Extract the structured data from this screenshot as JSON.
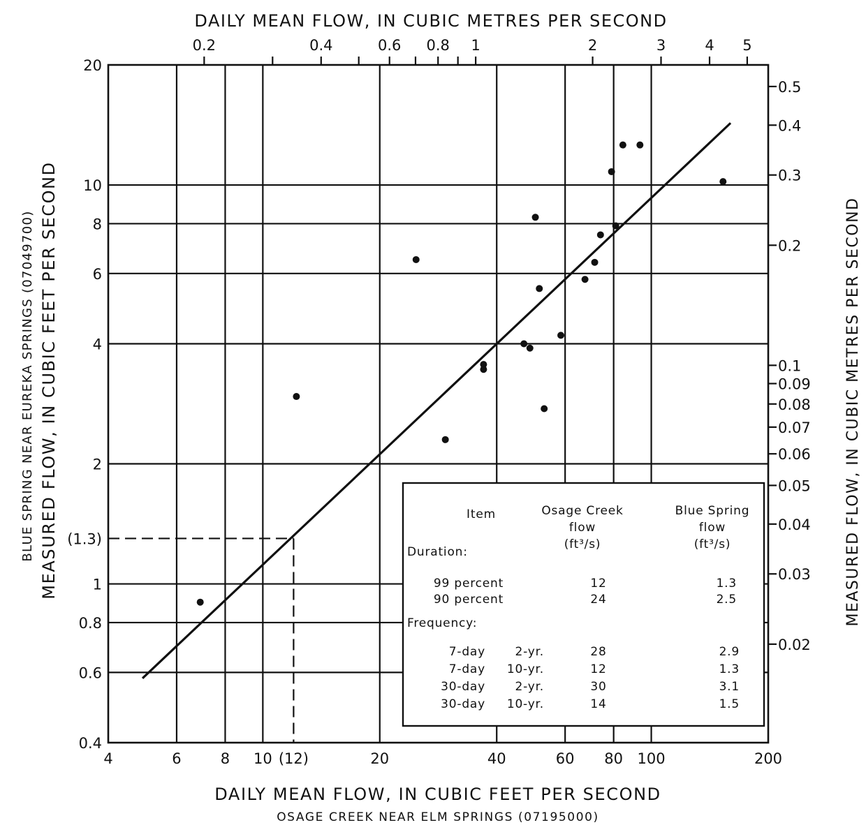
{
  "chart_data": {
    "type": "scatter",
    "scale": {
      "x": "log",
      "y": "log"
    },
    "xlim": [
      4,
      200
    ],
    "ylim": [
      0.4,
      20
    ],
    "grid": true,
    "top_title": "DAILY MEAN FLOW, IN CUBIC METRES PER SECOND",
    "xlabel": "DAILY MEAN FLOW, IN CUBIC FEET PER SECOND",
    "xlabel_sub": "OSAGE CREEK NEAR ELM SPRINGS (07195000)",
    "ylabel_left_sub": "BLUE SPRING NEAR EUREKA SPRINGS (07049700)",
    "ylabel_left": "MEASURED FLOW, IN CUBIC FEET PER SECOND",
    "ylabel_right": "MEASURED FLOW, IN CUBIC METRES PER SECOND",
    "x_ticks": [
      {
        "v": 4,
        "label": "4"
      },
      {
        "v": 6,
        "label": "6"
      },
      {
        "v": 8,
        "label": "8"
      },
      {
        "v": 10,
        "label": "10"
      },
      {
        "v": 12,
        "label": "(12)"
      },
      {
        "v": 20,
        "label": "20"
      },
      {
        "v": 40,
        "label": "40"
      },
      {
        "v": 60,
        "label": "60"
      },
      {
        "v": 80,
        "label": "80"
      },
      {
        "v": 100,
        "label": "100"
      },
      {
        "v": 200,
        "label": "200"
      }
    ],
    "x_grid": [
      6,
      8,
      10,
      20,
      40,
      60,
      80,
      100
    ],
    "y_ticks": [
      {
        "v": 0.4,
        "label": "0.4"
      },
      {
        "v": 0.6,
        "label": "0.6"
      },
      {
        "v": 0.8,
        "label": "0.8"
      },
      {
        "v": 1,
        "label": "1"
      },
      {
        "v": 1.3,
        "label": "(1.3)"
      },
      {
        "v": 2,
        "label": "2"
      },
      {
        "v": 4,
        "label": "4"
      },
      {
        "v": 6,
        "label": "6"
      },
      {
        "v": 8,
        "label": "8"
      },
      {
        "v": 10,
        "label": "10"
      },
      {
        "v": 20,
        "label": "20"
      }
    ],
    "y_grid": [
      0.6,
      0.8,
      1,
      2,
      4,
      6,
      8,
      10
    ],
    "top_ticks": [
      {
        "v": 0.2,
        "label": "0.2",
        "labeled": true
      },
      {
        "v": 0.3,
        "label": "",
        "labeled": false
      },
      {
        "v": 0.4,
        "label": "0.4",
        "labeled": true
      },
      {
        "v": 0.5,
        "label": "",
        "labeled": false
      },
      {
        "v": 0.6,
        "label": "0.6",
        "labeled": true
      },
      {
        "v": 0.7,
        "label": "",
        "labeled": false
      },
      {
        "v": 0.8,
        "label": "0.8",
        "labeled": true
      },
      {
        "v": 0.9,
        "label": "",
        "labeled": false
      },
      {
        "v": 1,
        "label": "1",
        "labeled": true
      },
      {
        "v": 2,
        "label": "2",
        "labeled": true
      },
      {
        "v": 3,
        "label": "3",
        "labeled": true
      },
      {
        "v": 4,
        "label": "4",
        "labeled": true
      },
      {
        "v": 5,
        "label": "5",
        "labeled": true
      }
    ],
    "right_ticks": [
      {
        "v": 0.02,
        "label": "0.02"
      },
      {
        "v": 0.03,
        "label": "0.03"
      },
      {
        "v": 0.04,
        "label": "0.04"
      },
      {
        "v": 0.05,
        "label": "0.05"
      },
      {
        "v": 0.06,
        "label": "0.06"
      },
      {
        "v": 0.07,
        "label": "0.07"
      },
      {
        "v": 0.08,
        "label": "0.08"
      },
      {
        "v": 0.09,
        "label": "0.09"
      },
      {
        "v": 0.1,
        "label": "0.1"
      },
      {
        "v": 0.2,
        "label": "0.2"
      },
      {
        "v": 0.3,
        "label": "0.3"
      },
      {
        "v": 0.4,
        "label": "0.4"
      },
      {
        "v": 0.5,
        "label": "0.5"
      }
    ],
    "points": [
      {
        "x": 6.9,
        "y": 0.9
      },
      {
        "x": 12.2,
        "y": 2.95
      },
      {
        "x": 24.8,
        "y": 6.5
      },
      {
        "x": 29.5,
        "y": 2.3
      },
      {
        "x": 37.0,
        "y": 3.55
      },
      {
        "x": 37.0,
        "y": 3.45
      },
      {
        "x": 47.0,
        "y": 4.0
      },
      {
        "x": 48.7,
        "y": 3.9
      },
      {
        "x": 50.3,
        "y": 8.3
      },
      {
        "x": 51.5,
        "y": 5.5
      },
      {
        "x": 53.0,
        "y": 2.75
      },
      {
        "x": 58.5,
        "y": 4.2
      },
      {
        "x": 67.5,
        "y": 5.8
      },
      {
        "x": 71.5,
        "y": 6.4
      },
      {
        "x": 74.0,
        "y": 7.5
      },
      {
        "x": 79.0,
        "y": 10.8
      },
      {
        "x": 81.0,
        "y": 7.9
      },
      {
        "x": 84.5,
        "y": 12.6
      },
      {
        "x": 93.5,
        "y": 12.6
      },
      {
        "x": 153.0,
        "y": 10.2
      }
    ],
    "regression_line": {
      "x": [
        4.9,
        160
      ],
      "y": [
        0.58,
        14.3
      ]
    },
    "example": {
      "x": 12,
      "y": 1.3
    }
  },
  "table": {
    "headers": [
      [
        "Item"
      ],
      [
        "Osage Creek",
        "flow",
        "(ft³/s)"
      ],
      [
        "Blue Spring",
        "flow",
        "(ft³/s)"
      ]
    ],
    "sections": [
      {
        "title": "Duration:",
        "rows": [
          {
            "item": "99 percent",
            "osage": "12",
            "blue": "1.3"
          },
          {
            "item": "90 percent",
            "osage": "24",
            "blue": "2.5"
          }
        ]
      },
      {
        "title": "Frequency:",
        "rows": [
          {
            "item": "7-day",
            "period": "2-yr.",
            "osage": "28",
            "blue": "2.9"
          },
          {
            "item": "7-day",
            "period": "10-yr.",
            "osage": "12",
            "blue": "1.3"
          },
          {
            "item": "30-day",
            "period": "2-yr.",
            "osage": "30",
            "blue": "3.1"
          },
          {
            "item": "30-day",
            "period": "10-yr.",
            "osage": "14",
            "blue": "1.5"
          }
        ]
      }
    ]
  }
}
